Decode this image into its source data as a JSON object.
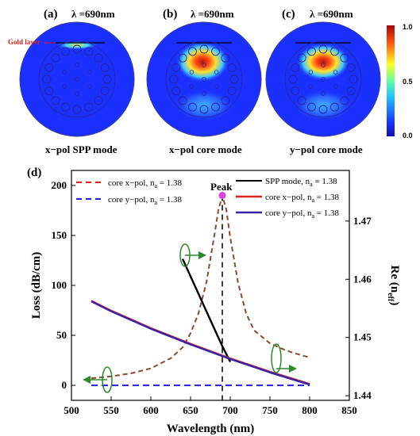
{
  "panels": [
    {
      "letter": "(a)",
      "wavelength": "λ =690nm",
      "caption": "x−pol SPP  mode",
      "annotation": "Gold layer"
    },
    {
      "letter": "(b)",
      "wavelength": "λ =690nm",
      "caption": "x−pol core  mode"
    },
    {
      "letter": "(c)",
      "wavelength": "λ =690nm",
      "caption": "y−pol core mode"
    }
  ],
  "colorbar": {
    "ticks": [
      "1.0",
      "0.5",
      "0.0"
    ]
  },
  "chart_data": {
    "type": "line",
    "panel_letter": "(d)",
    "xlabel": "Wavelength  (nm)",
    "ylabel_left": "Loss (dB/cm)",
    "ylabel_right": "Re (n",
    "ylabel_right_sub": "eff",
    "ylabel_right_end": ")",
    "xlim": [
      500,
      850
    ],
    "ylim_left": [
      -15,
      215
    ],
    "ylim_right": [
      1.4392,
      1.4787
    ],
    "x_ticks": [
      "500",
      "550",
      "600",
      "650",
      "700",
      "750",
      "800",
      "850"
    ],
    "y_left_ticks": [
      "0",
      "50",
      "100",
      "150",
      "200"
    ],
    "y_right_ticks": [
      "1.44",
      "1.45",
      "1.46",
      "1.47"
    ],
    "peak_label": "Peak",
    "peak_point": {
      "x": 690,
      "y": 190
    },
    "legend_left": [
      {
        "text": "core x−pol, n",
        "sub": "a",
        "tail": " = 1.38",
        "color": "#e0201c",
        "dash": "dashed"
      },
      {
        "text": "core y−pol, n",
        "sub": "a",
        "tail": " = 1.38",
        "color": "#1f1fe0",
        "dash": "dashed"
      }
    ],
    "legend_right": [
      {
        "text": "SPP mode, n",
        "sub": "a",
        "tail": " = 1.38",
        "color": "#000000",
        "dash": "solid"
      },
      {
        "text": "core x−pol, n",
        "sub": "a",
        "tail": " = 1.38",
        "color": "#e0201c",
        "dash": "solid"
      },
      {
        "text": "core y−pol, n",
        "sub": "a",
        "tail": " = 1.38",
        "color": "#3a22a8",
        "dash": "solid"
      }
    ],
    "series": [
      {
        "name": "core x−pol, n_a = 1.38 (loss)",
        "axis": "left",
        "style": "dashed",
        "color": "#8a4a2e",
        "x": [
          525,
          550,
          575,
          600,
          625,
          640,
          650,
          660,
          670,
          680,
          685,
          690,
          695,
          700,
          710,
          720,
          730,
          750,
          770,
          790,
          800
        ],
        "y": [
          7,
          9,
          12,
          17,
          27,
          38,
          52,
          72,
          103,
          150,
          175,
          190,
          176,
          148,
          102,
          72,
          55,
          42,
          35,
          30,
          28
        ]
      },
      {
        "name": "core y−pol, n_a = 1.38 (loss)",
        "axis": "left",
        "style": "dashed",
        "color": "#1f1fe0",
        "x": [
          525,
          800
        ],
        "y": [
          0,
          0
        ]
      },
      {
        "name": "SPP mode, n_a = 1.38",
        "axis": "right",
        "style": "solid",
        "color": "#000000",
        "x": [
          640,
          650,
          660,
          670,
          680,
          690,
          700
        ],
        "y": [
          1.4635,
          1.4605,
          1.4575,
          1.4545,
          1.4515,
          1.4485,
          1.4458
        ]
      },
      {
        "name": "core x−pol, n_a = 1.38",
        "axis": "right",
        "style": "solid",
        "color": "#e0201c",
        "x": [
          525,
          550,
          600,
          650,
          690,
          700,
          750,
          800
        ],
        "y": [
          1.4563,
          1.4546,
          1.4516,
          1.4489,
          1.4469,
          1.4464,
          1.4441,
          1.442
        ]
      },
      {
        "name": "core y−pol, n_a = 1.38",
        "axis": "right",
        "style": "solid",
        "color": "#3a22a8",
        "x": [
          525,
          550,
          600,
          650,
          690,
          700,
          750,
          800
        ],
        "y": [
          1.4562,
          1.4545,
          1.4515,
          1.4488,
          1.4468,
          1.4463,
          1.444,
          1.4419
        ]
      }
    ]
  }
}
